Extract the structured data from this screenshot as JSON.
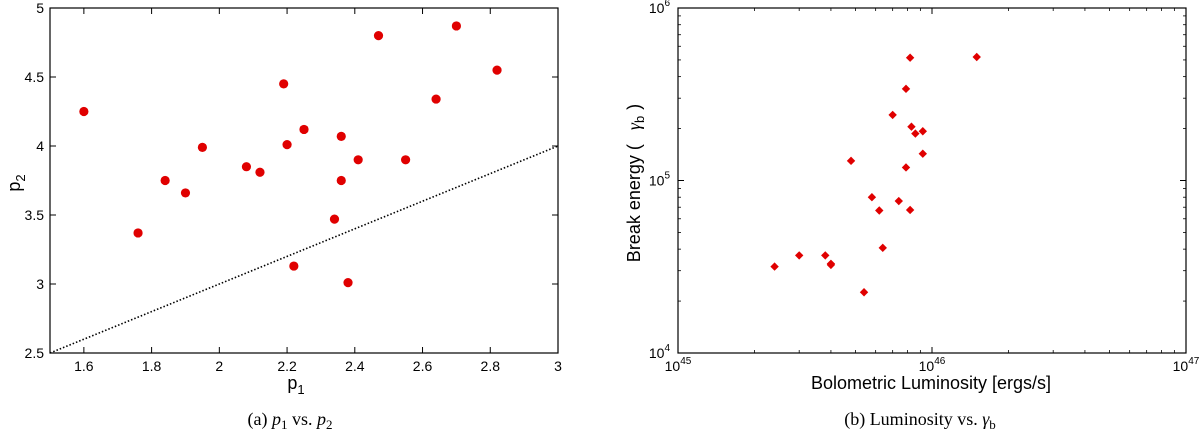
{
  "chart_data": [
    {
      "type": "scatter",
      "caption": {
        "prefix": "(a) ",
        "a": "p",
        "a_sub": "1",
        "mid": " vs. ",
        "b": "p",
        "b_sub": "2"
      },
      "xlabel": {
        "main": "p",
        "sub": "1"
      },
      "ylabel": {
        "main": "p",
        "sub": "2"
      },
      "xlim": [
        1.5,
        3.0
      ],
      "ylim": [
        2.5,
        5.0
      ],
      "xticks": [
        "1.6",
        "1.8",
        "2",
        "2.2",
        "2.4",
        "2.6",
        "2.8",
        "3"
      ],
      "yticks": [
        "2.5",
        "3",
        "3.5",
        "4",
        "4.5",
        "5"
      ],
      "marker_color": "#e00000",
      "marker": "circle",
      "grid": false,
      "reference_line": {
        "style": "dotted",
        "from": [
          1.5,
          2.5
        ],
        "to": [
          3.0,
          4.0
        ]
      },
      "points": [
        {
          "x": 1.6,
          "y": 4.25
        },
        {
          "x": 1.76,
          "y": 3.37
        },
        {
          "x": 1.84,
          "y": 3.75
        },
        {
          "x": 1.9,
          "y": 3.66
        },
        {
          "x": 1.95,
          "y": 3.99
        },
        {
          "x": 2.08,
          "y": 3.85
        },
        {
          "x": 2.12,
          "y": 3.81
        },
        {
          "x": 2.19,
          "y": 4.45
        },
        {
          "x": 2.2,
          "y": 4.01
        },
        {
          "x": 2.22,
          "y": 3.13
        },
        {
          "x": 2.25,
          "y": 4.12
        },
        {
          "x": 2.34,
          "y": 3.47
        },
        {
          "x": 2.36,
          "y": 4.07
        },
        {
          "x": 2.36,
          "y": 3.75
        },
        {
          "x": 2.38,
          "y": 3.01
        },
        {
          "x": 2.41,
          "y": 3.9
        },
        {
          "x": 2.47,
          "y": 4.8
        },
        {
          "x": 2.55,
          "y": 3.9
        },
        {
          "x": 2.64,
          "y": 4.34
        },
        {
          "x": 2.7,
          "y": 4.87
        },
        {
          "x": 2.82,
          "y": 4.55
        }
      ]
    },
    {
      "type": "scatter",
      "scale": "log-log",
      "caption": {
        "prefix": "(b) Luminosity vs. ",
        "sym": "γ",
        "sym_sub": "b"
      },
      "xlabel": "Bolometric Luminosity [ergs/s]",
      "ylabel": {
        "main": "Break energy (",
        "sym": "γ",
        "sub": "b",
        "close": ")"
      },
      "xlim": [
        1e+45,
        1e+47
      ],
      "ylim": [
        10000.0,
        1000000.0
      ],
      "xticks": [
        {
          "base": "10",
          "exp": "45"
        },
        {
          "base": "10",
          "exp": "46"
        },
        {
          "base": "10",
          "exp": "47"
        }
      ],
      "yticks": [
        {
          "base": "10",
          "exp": "4"
        },
        {
          "base": "10",
          "exp": "5"
        },
        {
          "base": "10",
          "exp": "6"
        }
      ],
      "marker_color": "#e00000",
      "marker": "diamond",
      "grid": false,
      "points": [
        {
          "x": 2.4e+45,
          "y": 31700
        },
        {
          "x": 3e+45,
          "y": 36800
        },
        {
          "x": 3.8e+45,
          "y": 36800
        },
        {
          "x": 4e+45,
          "y": 32400
        },
        {
          "x": 4e+45,
          "y": 32900
        },
        {
          "x": 4.8e+45,
          "y": 130000
        },
        {
          "x": 5.4e+45,
          "y": 22500
        },
        {
          "x": 5.8e+45,
          "y": 80000
        },
        {
          "x": 6.2e+45,
          "y": 67000
        },
        {
          "x": 6.4e+45,
          "y": 40700
        },
        {
          "x": 7e+45,
          "y": 240000
        },
        {
          "x": 7.4e+45,
          "y": 76000
        },
        {
          "x": 7.9e+45,
          "y": 119000
        },
        {
          "x": 7.9e+45,
          "y": 340000
        },
        {
          "x": 8.2e+45,
          "y": 515000
        },
        {
          "x": 8.2e+45,
          "y": 67500
        },
        {
          "x": 8.3e+45,
          "y": 205000
        },
        {
          "x": 8.6e+45,
          "y": 187000
        },
        {
          "x": 9.2e+45,
          "y": 193000
        },
        {
          "x": 9.2e+45,
          "y": 143000
        },
        {
          "x": 1.5e+46,
          "y": 520000
        }
      ]
    }
  ]
}
